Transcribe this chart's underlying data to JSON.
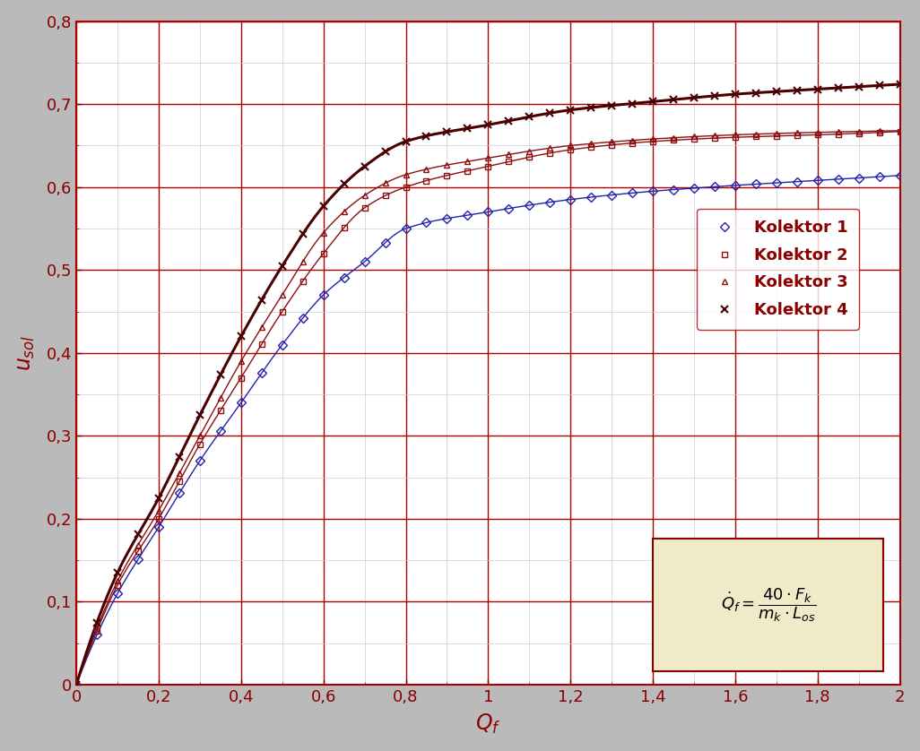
{
  "title": "",
  "xlabel": "Q_f",
  "ylabel": "u_sol",
  "xlim": [
    0,
    2.0
  ],
  "ylim": [
    0,
    0.8
  ],
  "xticks": [
    0,
    0.2,
    0.4,
    0.6,
    0.8,
    1.0,
    1.2,
    1.4,
    1.6,
    1.8,
    2.0
  ],
  "yticks": [
    0,
    0.1,
    0.2,
    0.3,
    0.4,
    0.5,
    0.6,
    0.7,
    0.8
  ],
  "series": [
    {
      "label": "Kolektor 1",
      "color": "#2222AA",
      "linecolor": "#2222AA",
      "marker": "D",
      "linewidth": 1.0,
      "markersize": 5,
      "markerfacecolor": "none",
      "a": 0.62,
      "b": 0.42
    },
    {
      "label": "Kolektor 2",
      "color": "#8B1010",
      "linecolor": "#8B1010",
      "marker": "s",
      "linewidth": 1.0,
      "markersize": 5,
      "markerfacecolor": "none",
      "a": 0.67,
      "b": 0.46
    },
    {
      "label": "Kolektor 3",
      "color": "#8B1010",
      "linecolor": "#8B1010",
      "marker": "^",
      "linewidth": 1.0,
      "markersize": 5,
      "markerfacecolor": "none",
      "a": 0.67,
      "b": 0.49
    },
    {
      "label": "Kolektor 4",
      "color": "#4A0000",
      "linecolor": "#4A0000",
      "marker": "x",
      "linewidth": 2.2,
      "markersize": 6,
      "markerfacecolor": "#4A0000",
      "a": 0.73,
      "b": 0.6
    }
  ],
  "bg_color": "#BABABA",
  "plot_bg_color": "#FFFFFF",
  "grid_major_color": "#AA0000",
  "grid_minor_color": "#C5CDE0",
  "formula_bg": "#F0EAC8",
  "formula_border": "#8B0000",
  "tick_color": "#8B0000",
  "label_color": "#8B0000",
  "legend_text_color": "#8B0000",
  "num_markers": 41
}
